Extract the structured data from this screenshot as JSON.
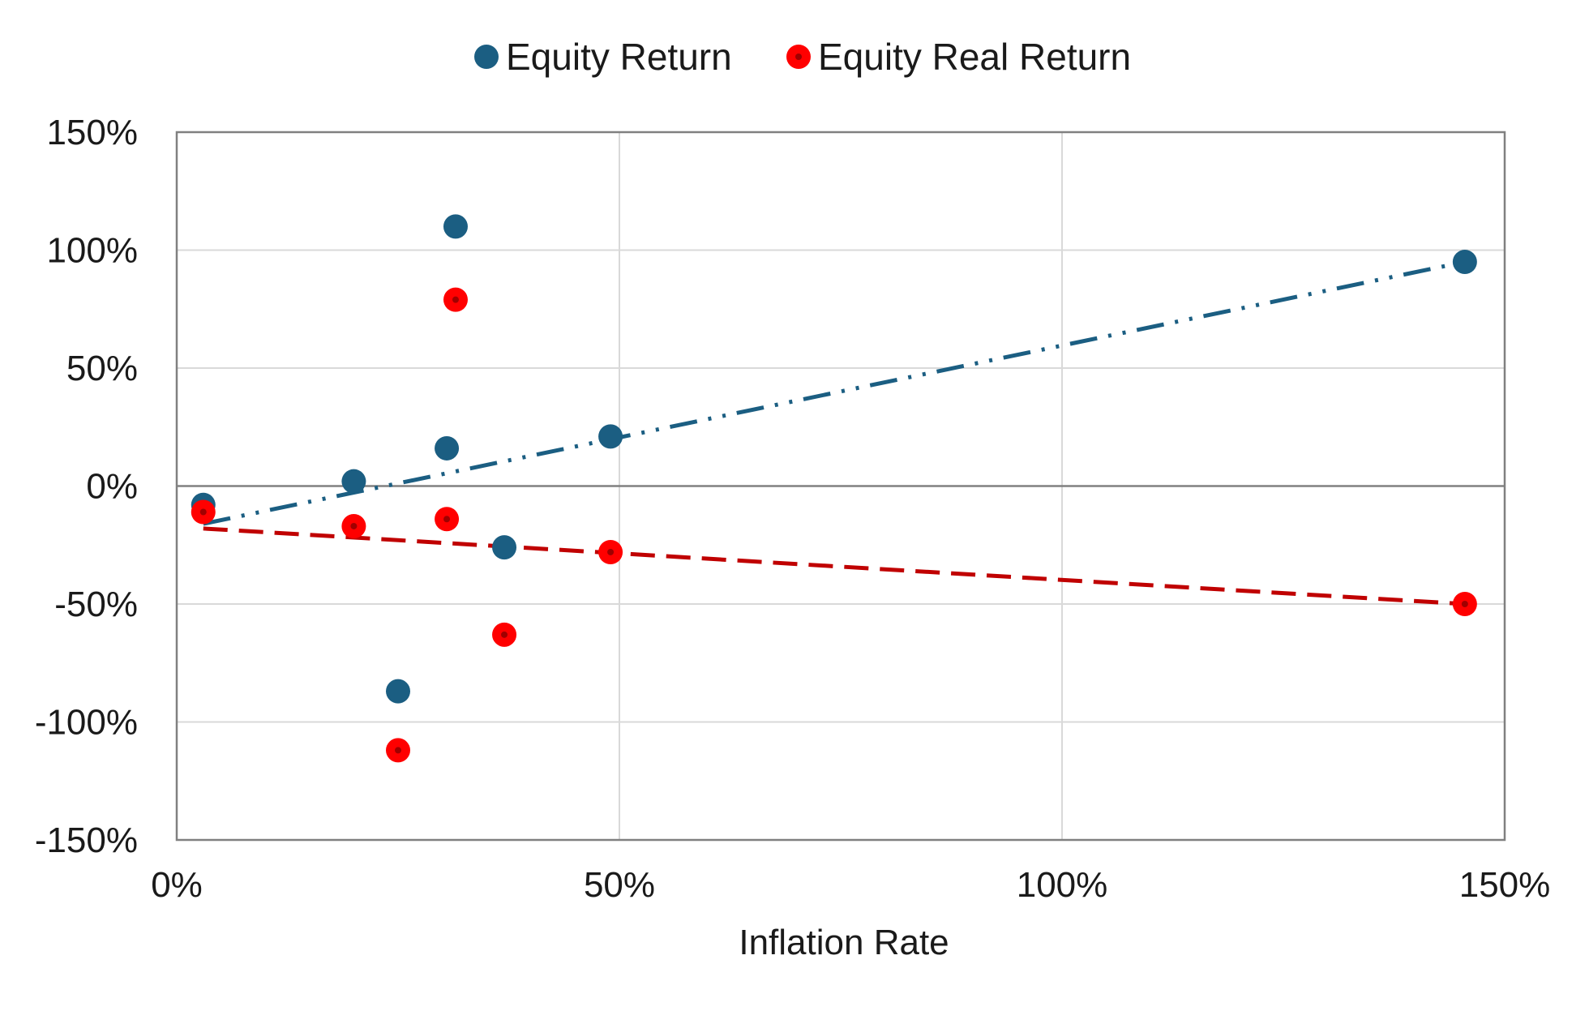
{
  "chart_data": {
    "type": "scatter",
    "title": "",
    "xlabel": "Inflation Rate",
    "ylabel": "",
    "xlim": [
      0,
      1.5
    ],
    "ylim": [
      -1.5,
      1.5
    ],
    "x_ticks": [
      0,
      0.5,
      1.0,
      1.5
    ],
    "x_tick_labels": [
      "0%",
      "50%",
      "100%",
      "150%"
    ],
    "y_ticks": [
      1.5,
      1.0,
      0.5,
      0,
      -0.5,
      -1.0,
      -1.5
    ],
    "y_tick_labels": [
      "150%",
      "100%",
      "50%",
      "0%",
      "-50%",
      "-100%",
      "-150%"
    ],
    "grid": true,
    "legend_position": "top-center",
    "series": [
      {
        "name": "Equity Return",
        "color": "#1b5e82",
        "marker": "circle",
        "points": [
          {
            "x": 0.03,
            "y": -0.08
          },
          {
            "x": 0.2,
            "y": 0.02
          },
          {
            "x": 0.25,
            "y": -0.87
          },
          {
            "x": 0.305,
            "y": 0.16
          },
          {
            "x": 0.315,
            "y": 1.1
          },
          {
            "x": 0.37,
            "y": -0.26
          },
          {
            "x": 0.49,
            "y": 0.21
          },
          {
            "x": 1.455,
            "y": 0.95
          }
        ],
        "trendline": {
          "style": "dash-dot-dot",
          "x": [
            0.03,
            1.455
          ],
          "y": [
            -0.16,
            0.95
          ]
        }
      },
      {
        "name": "Equity Real Return",
        "color": "#ff0000",
        "marker": "circle",
        "points": [
          {
            "x": 0.03,
            "y": -0.11
          },
          {
            "x": 0.2,
            "y": -0.17
          },
          {
            "x": 0.25,
            "y": -1.12
          },
          {
            "x": 0.305,
            "y": -0.14
          },
          {
            "x": 0.315,
            "y": 0.79
          },
          {
            "x": 0.37,
            "y": -0.63
          },
          {
            "x": 0.49,
            "y": -0.28
          },
          {
            "x": 1.455,
            "y": -0.5
          }
        ],
        "trendline": {
          "style": "dashed",
          "color": "#c00000",
          "x": [
            0.03,
            1.455
          ],
          "y": [
            -0.18,
            -0.5
          ]
        }
      }
    ]
  }
}
